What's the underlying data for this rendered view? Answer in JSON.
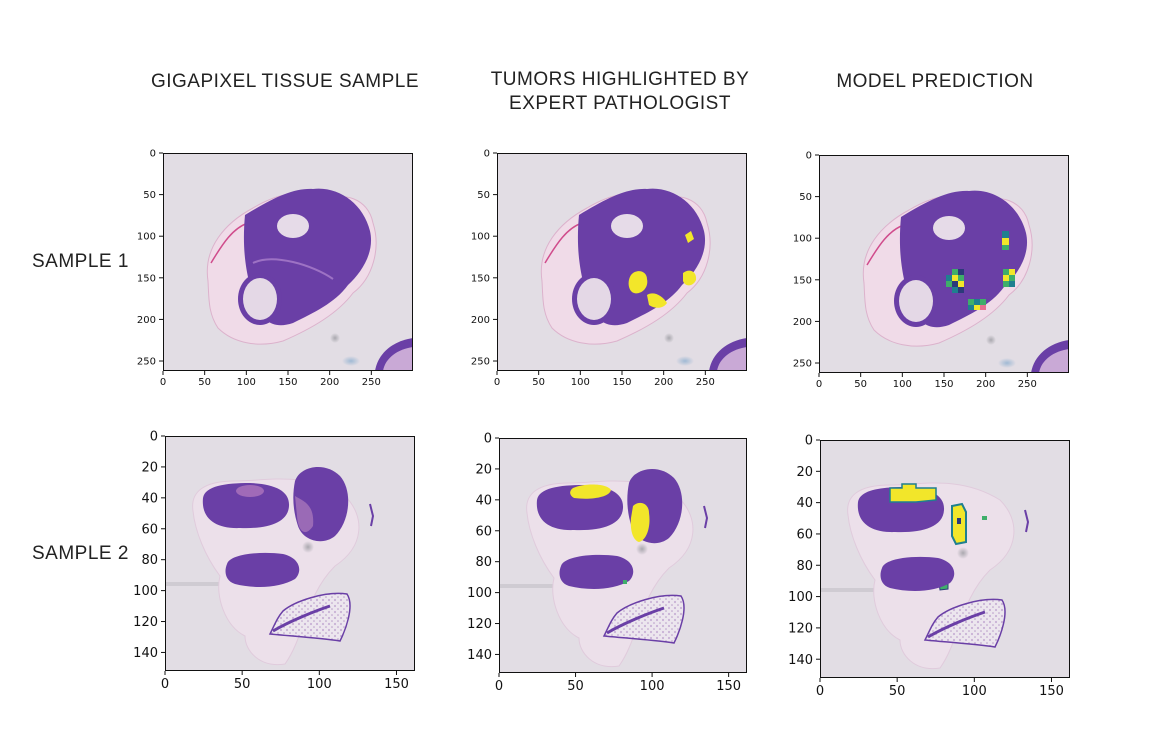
{
  "columns": [
    {
      "title_line1": "GIGAPIXEL TISSUE SAMPLE",
      "title_line2": ""
    },
    {
      "title_line1": "TUMORS HIGHLIGHTED BY",
      "title_line2": "EXPERT PATHOLOGIST"
    },
    {
      "title_line1": "MODEL PREDICTION",
      "title_line2": ""
    }
  ],
  "rows": [
    {
      "label": "SAMPLE 1",
      "x_ticks": [
        "0",
        "50",
        "100",
        "150",
        "200",
        "250"
      ],
      "y_ticks": [
        "0",
        "50",
        "100",
        "150",
        "200",
        "250"
      ]
    },
    {
      "label": "SAMPLE 2",
      "x_ticks": [
        "0",
        "50",
        "100",
        "150"
      ],
      "y_ticks": [
        "0",
        "20",
        "40",
        "60",
        "80",
        "100",
        "120",
        "140"
      ]
    }
  ],
  "colors": {
    "background": "#e2dde4",
    "tissue_dark": "#6a3fa6",
    "tissue_light": "#c9a9d6",
    "tumor_highlight": "#f2e62a",
    "model_green": "#3fae6a",
    "model_teal": "#1f7f8f",
    "model_navy": "#2c3a7a"
  }
}
